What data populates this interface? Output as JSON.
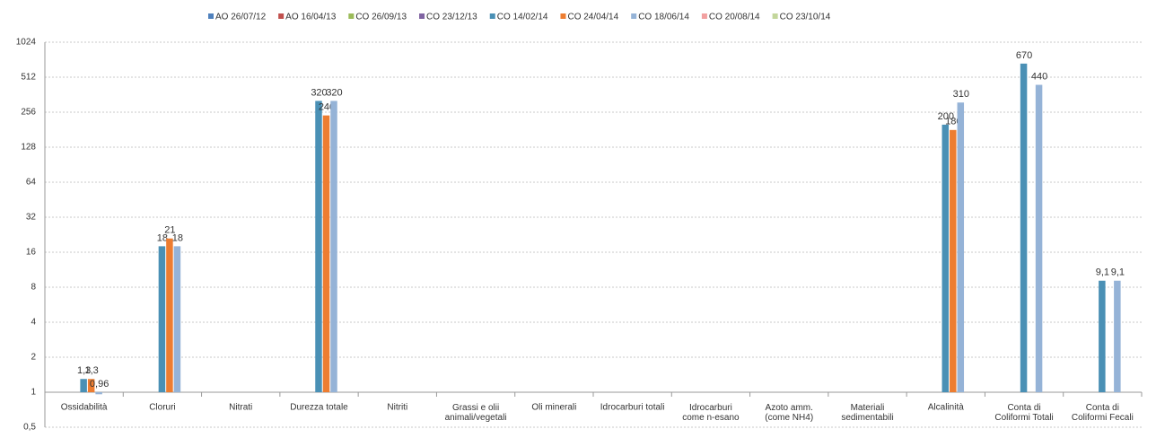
{
  "chart_data": {
    "type": "bar",
    "log_base": 2,
    "categories": [
      "Ossidabilità",
      "Cloruri",
      "Nitrati",
      "Durezza totale",
      "Nitriti",
      "Grassi e olii\nanimali/vegetali",
      "Oli minerali",
      "Idrocarburi totali",
      "Idrocarburi\ncome n-esano",
      "Azoto amm.\n(come NH4)",
      "Materiali\nsedimentabili",
      "Alcalinità",
      "Conta di\nColiformi Totali",
      "Conta di\nColiformi Fecali"
    ],
    "series": [
      {
        "name": "AO 26/07/12",
        "color": "#4f81bd",
        "values": [
          null,
          null,
          null,
          null,
          null,
          null,
          null,
          null,
          null,
          null,
          null,
          null,
          null,
          null
        ]
      },
      {
        "name": "AO 16/04/13",
        "color": "#c0504d",
        "values": [
          null,
          null,
          null,
          null,
          null,
          null,
          null,
          null,
          null,
          null,
          null,
          null,
          null,
          null
        ]
      },
      {
        "name": "CO 26/09/13",
        "color": "#9bbb59",
        "values": [
          null,
          null,
          null,
          null,
          null,
          null,
          null,
          null,
          null,
          null,
          null,
          null,
          null,
          null
        ]
      },
      {
        "name": "CO 23/12/13",
        "color": "#8064a2",
        "values": [
          null,
          null,
          null,
          null,
          null,
          null,
          null,
          null,
          null,
          null,
          null,
          null,
          null,
          null
        ]
      },
      {
        "name": "CO 14/02/14",
        "color": "#4a90b5",
        "values": [
          1.3,
          18,
          null,
          320,
          null,
          null,
          null,
          null,
          null,
          null,
          null,
          200,
          670,
          9.1
        ],
        "value_labels": [
          "1,3",
          "18",
          null,
          "320",
          null,
          null,
          null,
          null,
          null,
          null,
          null,
          "200",
          "670",
          "9,1"
        ]
      },
      {
        "name": "CO 24/04/14",
        "color": "#ed7d31",
        "values": [
          1.3,
          21,
          null,
          240,
          null,
          null,
          null,
          null,
          null,
          null,
          null,
          180,
          null,
          null
        ],
        "value_labels": [
          "1,3",
          "21",
          null,
          "240",
          null,
          null,
          null,
          null,
          null,
          null,
          null,
          "180",
          null,
          null
        ]
      },
      {
        "name": "CO 18/06/14",
        "color": "#95b3d7",
        "values": [
          0.96,
          18,
          null,
          320,
          null,
          null,
          null,
          null,
          null,
          null,
          null,
          310,
          440,
          9.1
        ],
        "value_labels": [
          "0,96",
          "18",
          null,
          "320",
          null,
          null,
          null,
          null,
          null,
          null,
          null,
          "310",
          "440",
          "9,1"
        ]
      },
      {
        "name": "CO 20/08/14",
        "color": "#f2a0a0",
        "values": [
          null,
          null,
          null,
          null,
          null,
          null,
          null,
          null,
          null,
          null,
          null,
          null,
          null,
          null
        ]
      },
      {
        "name": "CO 23/10/14",
        "color": "#c3d69b",
        "values": [
          null,
          null,
          null,
          null,
          null,
          null,
          null,
          null,
          null,
          null,
          null,
          null,
          null,
          null
        ]
      }
    ],
    "ylim": [
      0.5,
      1024
    ],
    "yticks": [
      {
        "value": 0.5,
        "label": "0,5"
      },
      1,
      2,
      4,
      8,
      16,
      32,
      64,
      128,
      256,
      512,
      1024
    ],
    "grid": true,
    "legend": "top"
  }
}
